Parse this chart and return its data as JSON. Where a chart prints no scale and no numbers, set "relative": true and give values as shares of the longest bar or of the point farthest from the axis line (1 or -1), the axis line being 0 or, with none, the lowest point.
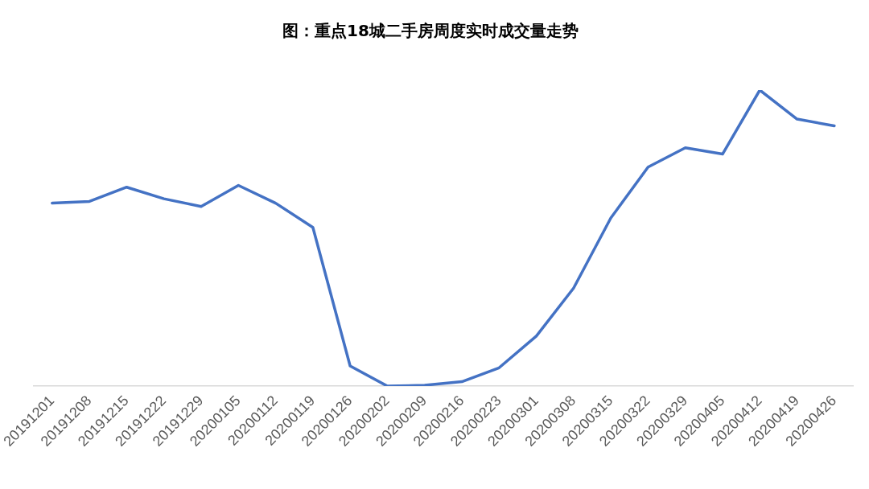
{
  "chart_data": {
    "type": "line",
    "title": "图：重点18城二手房周度实时成交量走势",
    "relative": true,
    "categories": [
      "20191201",
      "20191208",
      "20191215",
      "20191222",
      "20191229",
      "20200105",
      "20200112",
      "20200119",
      "20200126",
      "20200202",
      "20200209",
      "20200216",
      "20200223",
      "20200301",
      "20200308",
      "20200315",
      "20200322",
      "20200329",
      "20200405",
      "20200412",
      "20200419",
      "20200426"
    ],
    "series": [
      {
        "color": "#4472c4",
        "values": [
          0.618,
          0.624,
          0.672,
          0.633,
          0.607,
          0.678,
          0.618,
          0.536,
          0.068,
          0,
          0.003,
          0.015,
          0.062,
          0.169,
          0.331,
          0.568,
          0.74,
          0.805,
          0.784,
          1,
          0.902,
          0.879
        ]
      }
    ],
    "grid": false,
    "legend": false,
    "marker": "none",
    "line_style": "solid"
  }
}
